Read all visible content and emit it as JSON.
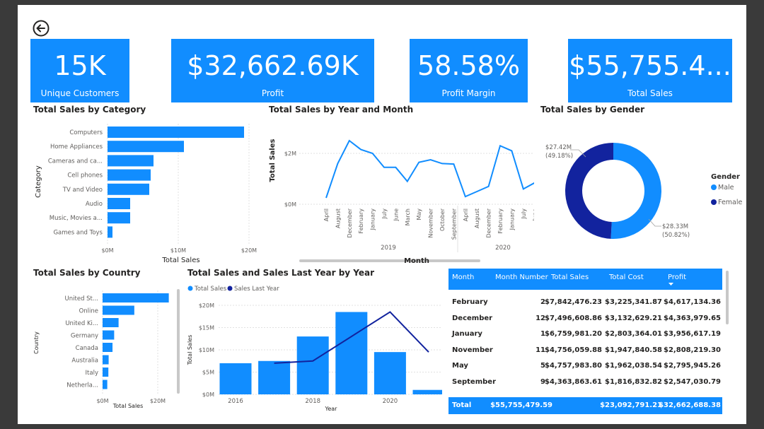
{
  "kpis": [
    {
      "value": "15K",
      "label": "Unique Customers"
    },
    {
      "value": "$32,662.69K",
      "label": "Profit"
    },
    {
      "value": "58.58%",
      "label": "Profit Margin"
    },
    {
      "value": "$55,755.4...",
      "label": "Total Sales"
    }
  ],
  "colors": {
    "primary": "#118DFF",
    "dark": "#12239E",
    "grid": "#E1E1E1"
  },
  "category_chart": {
    "title": "Total Sales by Category",
    "ylabel": "Category",
    "xlabel": "Total Sales",
    "ticks": [
      "$0M",
      "$10M",
      "$20M"
    ],
    "categories": [
      "Computers",
      "Home Appliances",
      "Cameras and ca...",
      "Cell phones",
      "TV and Video",
      "Audio",
      "Music, Movies a...",
      "Games and Toys"
    ],
    "values": [
      19.3,
      10.8,
      6.5,
      6.1,
      5.9,
      3.2,
      3.2,
      0.7
    ]
  },
  "month_chart": {
    "title": "Total Sales by Year and Month",
    "ylabel": "Total Sales",
    "xlabel": "Month",
    "ticks": [
      "$0M",
      "$2M"
    ],
    "years": [
      "2019",
      "2020"
    ],
    "months": [
      "April",
      "August",
      "December",
      "February",
      "January",
      "July",
      "June",
      "March",
      "May",
      "November",
      "October",
      "September",
      "April",
      "August",
      "December",
      "February",
      "January",
      "July",
      "June",
      "March"
    ],
    "values": [
      0.25,
      1.6,
      2.5,
      2.15,
      2.0,
      1.45,
      1.45,
      0.9,
      1.65,
      1.75,
      1.6,
      1.58,
      0.3,
      0.5,
      0.7,
      2.3,
      2.1,
      0.6,
      0.85,
      0.75
    ]
  },
  "gender_chart": {
    "title": "Total Sales by Gender",
    "legend_title": "Gender",
    "labels": [
      "Male",
      "Female"
    ],
    "values": [
      28.33,
      27.42
    ],
    "value_labels": [
      "$28.33M",
      "$27.42M"
    ],
    "pct_labels": [
      "(50.82%)",
      "(49.18%)"
    ]
  },
  "country_chart": {
    "title": "Total Sales by Country",
    "ylabel": "Country",
    "xlabel": "Total Sales",
    "ticks": [
      "$0M",
      "$20M"
    ],
    "categories": [
      "United St...",
      "Online",
      "United Ki...",
      "Germany",
      "Canada",
      "Australia",
      "Italy",
      "Netherla..."
    ],
    "values": [
      24.0,
      11.5,
      5.8,
      4.2,
      3.6,
      2.2,
      2.1,
      1.7
    ]
  },
  "year_chart": {
    "title": "Total Sales and Sales Last Year by Year",
    "ylabel": "Total Sales",
    "xlabel": "Year",
    "ticks": [
      "$0M",
      "$5M",
      "$10M",
      "$15M",
      "$20M"
    ],
    "xticks": [
      "2016",
      "2018",
      "2020"
    ],
    "legend": [
      "Total Sales",
      "Sales Last Year"
    ],
    "years": [
      2016,
      2017,
      2018,
      2019,
      2020,
      2021
    ],
    "total_sales": [
      7.0,
      7.5,
      13.0,
      18.5,
      9.5,
      1.0
    ],
    "sales_last_year": [
      null,
      7.0,
      7.5,
      13.0,
      18.5,
      9.5
    ]
  },
  "table": {
    "headers": [
      "Month",
      "Month Number",
      "Total Sales",
      "Total Cost",
      "Profit"
    ],
    "rows": [
      [
        "February",
        "2",
        "$7,842,476.23",
        "$3,225,341.87",
        "$4,617,134.36"
      ],
      [
        "December",
        "12",
        "$7,496,608.86",
        "$3,132,629.21",
        "$4,363,979.65"
      ],
      [
        "January",
        "1",
        "$6,759,981.20",
        "$2,803,364.01",
        "$3,956,617.19"
      ],
      [
        "November",
        "11",
        "$4,756,059.88",
        "$1,947,840.58",
        "$2,808,219.30"
      ],
      [
        "May",
        "5",
        "$4,757,983.80",
        "$1,962,038.54",
        "$2,795,945.26"
      ],
      [
        "September",
        "9",
        "$4,363,863.61",
        "$1,816,832.82",
        "$2,547,030.79"
      ]
    ],
    "total": [
      "Total",
      "",
      "$55,755,479.59",
      "$23,092,791.21",
      "$32,662,688.38"
    ]
  }
}
